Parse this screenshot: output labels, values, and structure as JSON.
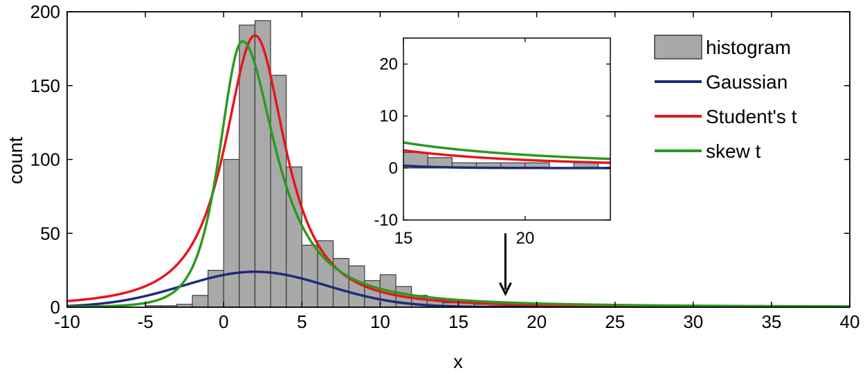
{
  "chart_data": {
    "type": "bar",
    "title": "",
    "xlabel": "x",
    "ylabel": "count",
    "xlim": [
      -10,
      40
    ],
    "ylim": [
      0,
      200
    ],
    "xticks": [
      -10,
      -5,
      0,
      5,
      10,
      15,
      20,
      25,
      30,
      35,
      40
    ],
    "yticks": [
      0,
      50,
      100,
      150,
      200
    ],
    "xtick_labels": [
      "-10",
      "-5",
      "0",
      "5",
      "10",
      "15",
      "20",
      "25",
      "30",
      "35",
      "40"
    ],
    "ytick_labels": [
      "0",
      "50",
      "100",
      "150",
      "200"
    ],
    "legend_position": "top-right",
    "histogram": {
      "name": "histogram",
      "color": "#a9a9a9",
      "bin_width": 1,
      "bin_starts": [
        -5,
        -4,
        -3,
        -2,
        -1,
        0,
        1,
        2,
        3,
        4,
        5,
        6,
        7,
        8,
        9,
        10,
        11,
        12,
        13,
        14,
        15,
        16,
        17,
        18,
        19,
        20,
        21,
        22
      ],
      "values": [
        1,
        1,
        2,
        8,
        25,
        100,
        191,
        194,
        157,
        95,
        42,
        45,
        33,
        28,
        18,
        22,
        14,
        8,
        5,
        3,
        3,
        2,
        1,
        1,
        1,
        1,
        0,
        1
      ]
    },
    "series": [
      {
        "name": "Gaussian",
        "color": "#1f2a7a",
        "kind": "gaussian",
        "amplitude": 24,
        "mean": 2,
        "sigma": 4.6
      },
      {
        "name": "Student's t",
        "color": "#e8151b",
        "kind": "student_t",
        "amplitude": 184,
        "location": 2,
        "scale": 2.2,
        "dof": 1.5
      },
      {
        "name": "skew t",
        "color": "#2a9a1f",
        "kind": "skew_t",
        "amplitude": 180,
        "mode": 1.2,
        "left_scale": 1.5,
        "right_scale": 2.5,
        "left_dof": 4,
        "right_dof": 1.2
      }
    ],
    "inset": {
      "xlim": [
        15,
        23.5
      ],
      "ylim": [
        -10,
        25
      ],
      "xticks": [
        15,
        20
      ],
      "yticks": [
        -10,
        0,
        10,
        20
      ],
      "xtick_labels": [
        "15",
        "20"
      ],
      "ytick_labels": [
        "-10",
        "0",
        "10",
        "20"
      ]
    },
    "annotation": {
      "type": "arrow",
      "x": 18,
      "y_from": 50,
      "y_to": 10
    }
  }
}
